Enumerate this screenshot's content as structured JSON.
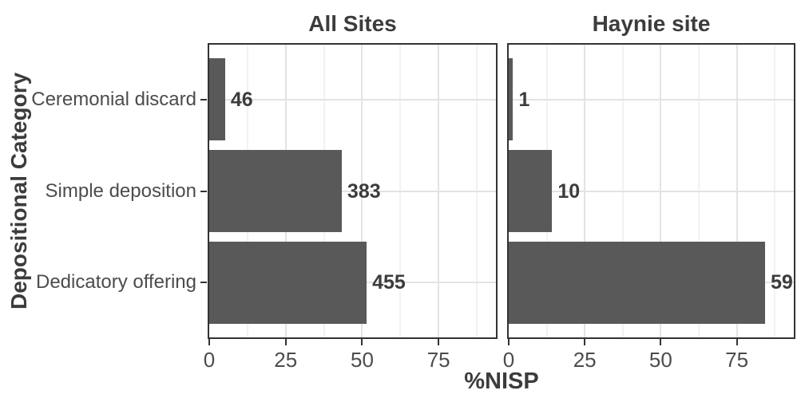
{
  "figure": {
    "x_axis_title": "%NISP",
    "y_axis_title": "Depositional Category"
  },
  "chart_data": {
    "type": "bar",
    "orientation": "horizontal",
    "title": "",
    "xlabel": "%NISP",
    "ylabel": "Depositional Category",
    "categories": [
      "Ceremonial discard",
      "Simple deposition",
      "Dedicatory offering"
    ],
    "x_axis": {
      "ticks": [
        0,
        25,
        50,
        75
      ],
      "range": [
        0,
        93.75
      ],
      "minor_step": 12.5
    },
    "grid": "vertical major+minor, horizontal major at category centers",
    "legend": "none",
    "bar_color": "#595959",
    "panels": [
      {
        "title": "All Sites",
        "values_pct_nisp": [
          5.2,
          43.33,
          51.47
        ],
        "count_labels": [
          "46",
          "383",
          "455"
        ]
      },
      {
        "title": "Haynie site",
        "values_pct_nisp": [
          1.43,
          14.29,
          84.29
        ],
        "count_labels": [
          "1",
          "10",
          "59"
        ]
      }
    ]
  }
}
